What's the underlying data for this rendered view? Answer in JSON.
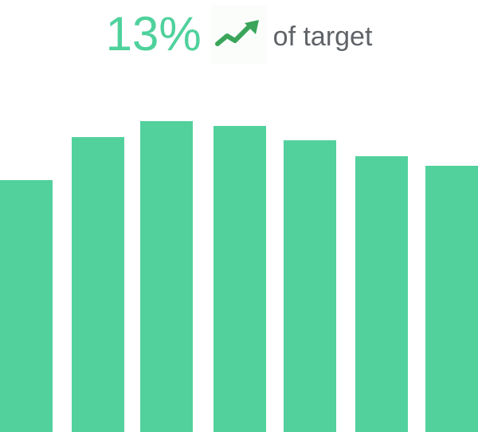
{
  "headline": {
    "value": "13%",
    "suffix": "of target",
    "trend_icon": "trending-up-icon",
    "value_color": "#4fd19c",
    "icon_color": "#3aa55a",
    "suffix_color": "#5f6368"
  },
  "chart_data": {
    "type": "bar",
    "values": [
      316,
      370,
      390,
      384,
      366,
      346,
      334
    ],
    "ylim": [
      0,
      400
    ],
    "bar_color": "#52d19d",
    "grid": false,
    "title": "",
    "xlabel": "",
    "ylabel": ""
  }
}
